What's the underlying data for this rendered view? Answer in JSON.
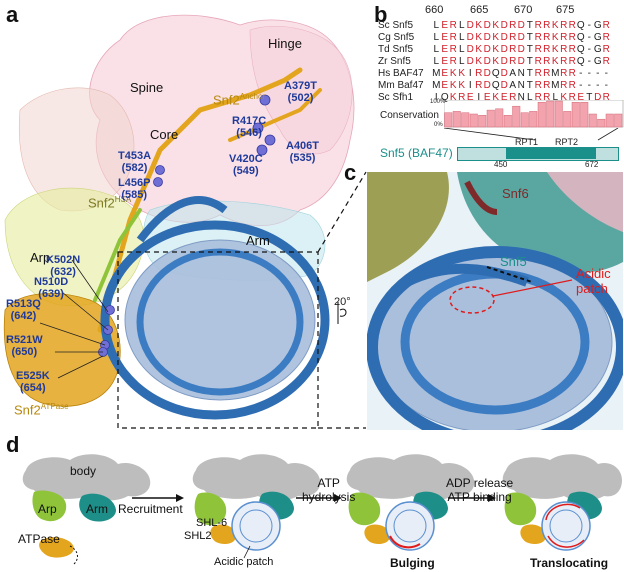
{
  "panels": {
    "a": "a",
    "b": "b",
    "c": "c",
    "d": "d"
  },
  "panel_a": {
    "labels": {
      "spine": "Spine",
      "hinge": "Hinge",
      "anchor": "Snf2",
      "anchor_sup": "Anchor",
      "core": "Core",
      "hsa": "Snf2",
      "hsa_sup": "HSA",
      "arp": "Arp",
      "arm": "Arm",
      "atpase": "Snf2",
      "atpase_sup": "ATPase"
    },
    "mutations": [
      {
        "name": "A379T",
        "num": "(502)"
      },
      {
        "name": "R417C",
        "num": "(546)"
      },
      {
        "name": "A406T",
        "num": "(535)"
      },
      {
        "name": "V420C",
        "num": "(549)"
      },
      {
        "name": "T453A",
        "num": "(582)"
      },
      {
        "name": "L456P",
        "num": "(585)"
      },
      {
        "name": "K502N",
        "num": "(632)"
      },
      {
        "name": "N510D",
        "num": "(639)"
      },
      {
        "name": "R513Q",
        "num": "(642)"
      },
      {
        "name": "R521W",
        "num": "(650)"
      },
      {
        "name": "E525K",
        "num": "(654)"
      }
    ],
    "rotation": "20°"
  },
  "panel_b": {
    "positions": [
      "660",
      "665",
      "670",
      "675"
    ],
    "rows": [
      {
        "name": "Sc Snf5",
        "seq": "LERLDKDKDRDTRRKRRQ-GR"
      },
      {
        "name": "Cg Snf5",
        "seq": "LERLDKDKDRDTRRKRRQ-GR"
      },
      {
        "name": "Td Snf5",
        "seq": "LERLDKDKDRDTRRKRRQ-GR"
      },
      {
        "name": "Zr Snf5",
        "seq": "LERLDKDKDRDTRRKRRQ-GR"
      },
      {
        "name": "Hs BAF47",
        "seq": "MEKKIRDQDANTRRMRR----"
      },
      {
        "name": "Mm Baf47",
        "seq": "MEKKIRDQDANTRRMRR----"
      },
      {
        "name": "Sc Sfh1",
        "seq": "IQKREIEKERNLRRLKRETDR"
      }
    ],
    "conservation_label": "Conservation",
    "cons_top": "100%",
    "cons_bottom": "0%",
    "conservation": [
      0.55,
      0.6,
      0.55,
      0.5,
      0.45,
      0.65,
      0.7,
      0.45,
      0.8,
      0.55,
      0.6,
      0.95,
      1.0,
      1.0,
      0.6,
      0.95,
      0.95,
      0.5,
      0.3,
      0.5,
      0.5
    ],
    "domain_label": "Snf5 (BAF47)",
    "rpt1": "RPT1",
    "rpt2": "RPT2",
    "start": "450",
    "end": "672"
  },
  "panel_c": {
    "snf6": "Snf6",
    "snf5": "Snf5",
    "acidic": "Acidic",
    "patch": "patch"
  },
  "panel_d": {
    "body": "body",
    "arp": "Arp",
    "arm": "Arm",
    "atpase": "ATPase",
    "recruitment": "Recruitment",
    "shl6": "SHL-6",
    "shl2": "SHL2",
    "acidic_patch": "Acidic patch",
    "atp_hydrolysis_1": "ATP",
    "atp_hydrolysis_2": "hydrolysis",
    "bulging": "Bulging",
    "adp_1": "ADP release",
    "adp_2": "ATP binding",
    "translocating": "Translocating"
  },
  "colors": {
    "dna": "#2f6db2",
    "histone": "#a9bedb",
    "atpase": "#e3a51e",
    "hsa": "#c9d56a",
    "arm": "#1e8f88",
    "arp": "#8fc43a",
    "body": "#bdbdbd",
    "mutation": "#1f3a9a",
    "accent_red": "#e01b1b"
  }
}
